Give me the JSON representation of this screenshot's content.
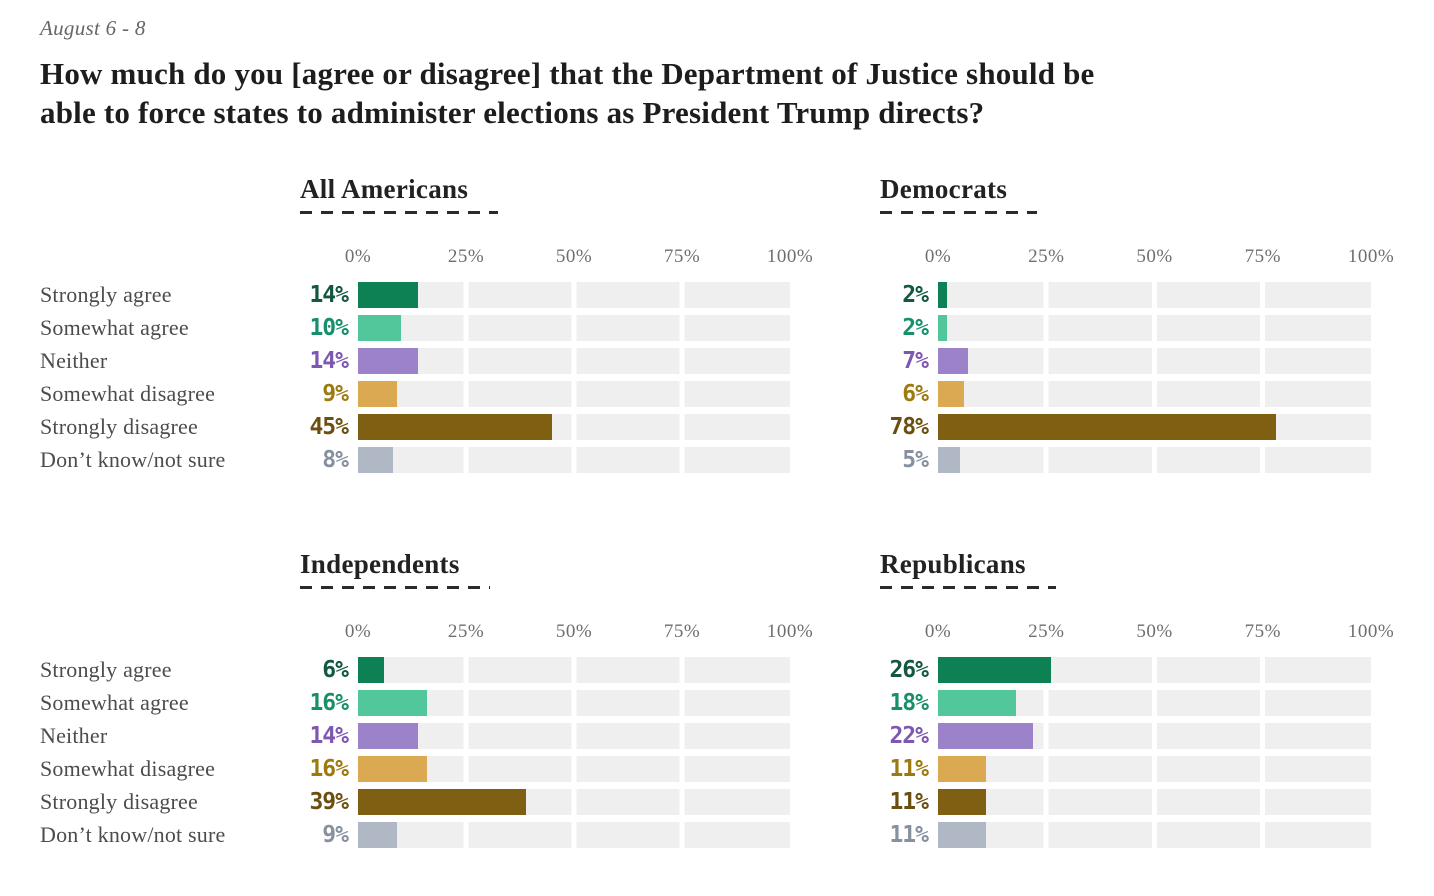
{
  "header": {
    "date_range": "August 6 - 8",
    "title_lines": [
      "How much do you [agree or disagree] that the Department of Justice should be",
      "able to force states to administer elections as President Trump directs?"
    ]
  },
  "colors": {
    "bars": [
      "#0d8054",
      "#52c79b",
      "#9c82c8",
      "#dba951",
      "#7f6013",
      "#b0b8c6"
    ],
    "value_labels": [
      "#135840",
      "#178f6a",
      "#7d58b2",
      "#9d7a0e",
      "#6b4f10",
      "#87909f"
    ],
    "track": "#efefef",
    "dash_underline": "#2b2b2b"
  },
  "chart_data": {
    "type": "bar",
    "orientation": "horizontal",
    "unit": "%",
    "xlim": [
      0,
      100
    ],
    "axis_ticks": [
      "0%",
      "25%",
      "50%",
      "75%",
      "100%"
    ],
    "grid": "quarter segment gaps in track background",
    "legend_position": "none",
    "categories": [
      "Strongly agree",
      "Somewhat agree",
      "Neither",
      "Somewhat disagree",
      "Strongly disagree",
      "Don’t know/not sure"
    ],
    "series": [
      {
        "name": "All Americans",
        "values": [
          14,
          10,
          14,
          9,
          45,
          8
        ],
        "display": [
          "14%",
          "10%",
          "14%",
          "9%",
          "45%",
          "8%"
        ]
      },
      {
        "name": "Democrats",
        "values": [
          2,
          2,
          7,
          6,
          78,
          5
        ],
        "display": [
          "2%",
          "2%",
          "7%",
          "6%",
          "78%",
          "5%"
        ]
      },
      {
        "name": "Independents",
        "values": [
          6,
          16,
          14,
          16,
          39,
          9
        ],
        "display": [
          "6%",
          "16%",
          "14%",
          "16%",
          "39%",
          "9%"
        ]
      },
      {
        "name": "Republicans",
        "values": [
          26,
          18,
          22,
          11,
          11,
          11
        ],
        "display": [
          "26%",
          "18%",
          "22%",
          "11%",
          "11%",
          "11%"
        ]
      }
    ]
  }
}
